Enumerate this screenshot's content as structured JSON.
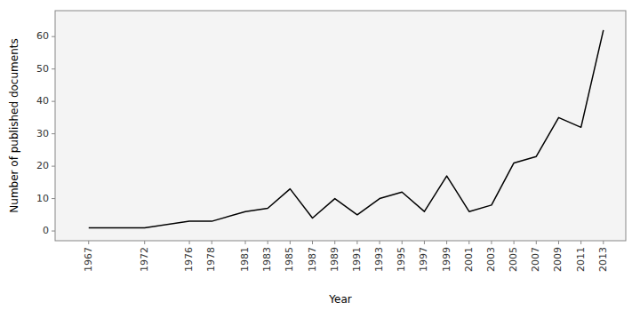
{
  "chart_data": {
    "type": "line",
    "x": [
      1967,
      1972,
      1976,
      1978,
      1981,
      1983,
      1985,
      1987,
      1989,
      1991,
      1993,
      1995,
      1997,
      1999,
      2001,
      2003,
      2005,
      2007,
      2009,
      2011,
      2013
    ],
    "values": [
      1,
      1,
      3,
      3,
      6,
      7,
      13,
      4,
      10,
      5,
      10,
      12,
      6,
      17,
      6,
      8,
      21,
      23,
      35,
      32,
      62
    ],
    "color": "#000000",
    "xlabel": "Year",
    "ylabel": "Number of published documents",
    "xlim": [
      1964,
      2015
    ],
    "xticks": [
      1967,
      1972,
      1976,
      1978,
      1981,
      1983,
      1985,
      1987,
      1989,
      1991,
      1993,
      1995,
      1997,
      1999,
      2001,
      2003,
      2005,
      2007,
      2009,
      2011,
      2013
    ],
    "ylim": [
      -3,
      68
    ],
    "yticks": [
      0,
      10,
      20,
      30,
      40,
      50,
      60
    ],
    "grid": false
  }
}
